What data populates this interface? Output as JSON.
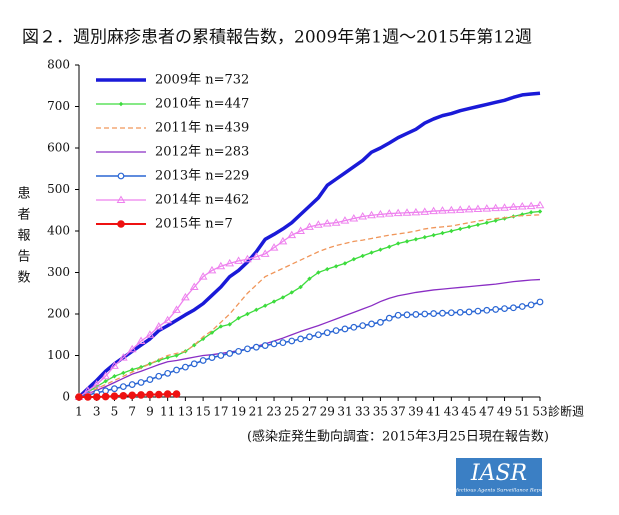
{
  "chart_data": {
    "type": "line",
    "title": "図２．週別麻疹患者の累積報告数，2009年第1週〜2015年第12週",
    "y_label": "患者報告数",
    "x_label": "診断週",
    "note": "(感染症発生動向調査：2015年3月25日現在報告数)",
    "logo": {
      "title": "IASR",
      "subtitle": "Infectious Agents Surveillance Report"
    },
    "x": [
      1,
      2,
      3,
      4,
      5,
      6,
      7,
      8,
      9,
      10,
      11,
      12,
      13,
      14,
      15,
      16,
      17,
      18,
      19,
      20,
      21,
      22,
      23,
      24,
      25,
      26,
      27,
      28,
      29,
      30,
      31,
      32,
      33,
      34,
      35,
      36,
      37,
      38,
      39,
      40,
      41,
      42,
      43,
      44,
      45,
      46,
      47,
      48,
      49,
      50,
      51,
      52,
      53
    ],
    "xlim": [
      1,
      53
    ],
    "xticks": [
      1,
      3,
      5,
      7,
      9,
      11,
      13,
      15,
      17,
      19,
      21,
      23,
      25,
      27,
      29,
      31,
      33,
      35,
      37,
      39,
      41,
      43,
      45,
      47,
      49,
      51,
      53
    ],
    "ylim": [
      0,
      800
    ],
    "yticks": [
      0,
      100,
      200,
      300,
      400,
      500,
      600,
      700,
      800
    ],
    "legend": "upper-left",
    "series": [
      {
        "name": "2009年 n=732",
        "color": "#1a1ad8",
        "width": 3.5,
        "dash": false,
        "marker": "none",
        "values": [
          0,
          20,
          40,
          62,
          80,
          95,
          110,
          125,
          140,
          160,
          172,
          185,
          198,
          210,
          225,
          245,
          265,
          290,
          305,
          325,
          350,
          380,
          392,
          405,
          420,
          440,
          460,
          480,
          510,
          525,
          540,
          555,
          570,
          590,
          600,
          612,
          625,
          635,
          645,
          660,
          670,
          678,
          683,
          690,
          695,
          700,
          705,
          710,
          715,
          722,
          728,
          730,
          732
        ]
      },
      {
        "name": "2010年 n=447",
        "color": "#3ddc3d",
        "width": 1.3,
        "dash": false,
        "marker": "diamond",
        "values": [
          0,
          12,
          25,
          38,
          50,
          58,
          66,
          72,
          80,
          88,
          95,
          100,
          110,
          125,
          140,
          155,
          170,
          175,
          190,
          200,
          210,
          220,
          230,
          240,
          252,
          265,
          285,
          300,
          308,
          315,
          322,
          332,
          340,
          348,
          355,
          362,
          370,
          375,
          380,
          385,
          390,
          395,
          400,
          405,
          410,
          415,
          420,
          425,
          430,
          435,
          440,
          445,
          447
        ]
      },
      {
        "name": "2011年 n=439",
        "color": "#f0965a",
        "width": 1.3,
        "dash": true,
        "marker": "none",
        "values": [
          0,
          10,
          20,
          30,
          40,
          50,
          60,
          70,
          80,
          90,
          100,
          105,
          110,
          125,
          145,
          160,
          180,
          200,
          225,
          250,
          270,
          290,
          300,
          310,
          320,
          330,
          340,
          350,
          358,
          365,
          370,
          375,
          378,
          382,
          386,
          390,
          393,
          396,
          400,
          405,
          408,
          410,
          412,
          416,
          420,
          424,
          427,
          430,
          432,
          435,
          437,
          438,
          439
        ]
      },
      {
        "name": "2012年 n=283",
        "color": "#8a2ec4",
        "width": 1.3,
        "dash": false,
        "marker": "none",
        "values": [
          0,
          8,
          16,
          25,
          35,
          45,
          55,
          62,
          70,
          78,
          85,
          88,
          92,
          96,
          100,
          102,
          105,
          108,
          112,
          116,
          122,
          128,
          135,
          142,
          150,
          158,
          165,
          172,
          180,
          188,
          196,
          204,
          212,
          220,
          230,
          238,
          244,
          248,
          252,
          255,
          258,
          260,
          262,
          264,
          266,
          268,
          270,
          272,
          275,
          278,
          280,
          282,
          283
        ]
      },
      {
        "name": "2013年 n=229",
        "color": "#2a66d4",
        "width": 1.6,
        "dash": false,
        "marker": "circle",
        "values": [
          0,
          5,
          10,
          15,
          20,
          25,
          30,
          35,
          42,
          50,
          57,
          65,
          72,
          80,
          88,
          95,
          100,
          105,
          110,
          116,
          120,
          124,
          128,
          131,
          135,
          140,
          145,
          150,
          155,
          160,
          164,
          168,
          172,
          176,
          180,
          190,
          197,
          198,
          199,
          200,
          201,
          202,
          203,
          204,
          205,
          207,
          209,
          211,
          213,
          215,
          218,
          222,
          229
        ]
      },
      {
        "name": "2014年 n=462",
        "color": "#ee80ee",
        "width": 1.3,
        "dash": false,
        "marker": "triangle",
        "values": [
          0,
          15,
          30,
          50,
          75,
          95,
          115,
          135,
          150,
          170,
          185,
          210,
          240,
          265,
          290,
          305,
          315,
          322,
          328,
          332,
          338,
          345,
          360,
          375,
          390,
          400,
          410,
          415,
          418,
          420,
          425,
          430,
          435,
          438,
          440,
          442,
          443,
          444,
          445,
          446,
          448,
          449,
          450,
          451,
          452,
          453,
          454,
          455,
          456,
          458,
          459,
          460,
          462
        ]
      },
      {
        "name": "2015年 n=7",
        "color": "#ee1111",
        "width": 2,
        "dash": false,
        "marker": "dot",
        "values": [
          0,
          0,
          0,
          1,
          2,
          3,
          4,
          5,
          6,
          6,
          7,
          7,
          null,
          null,
          null,
          null,
          null,
          null,
          null,
          null,
          null,
          null,
          null,
          null,
          null,
          null,
          null,
          null,
          null,
          null,
          null,
          null,
          null,
          null,
          null,
          null,
          null,
          null,
          null,
          null,
          null,
          null,
          null,
          null,
          null,
          null,
          null,
          null,
          null,
          null,
          null,
          null,
          null
        ]
      }
    ]
  }
}
